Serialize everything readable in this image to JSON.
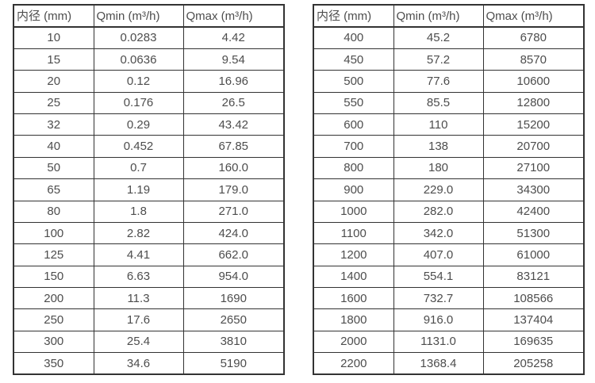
{
  "page": {
    "background_color": "#ffffff",
    "border_color": "#333333",
    "text_color": "#4d4d4d"
  },
  "tables": [
    {
      "name": "small-diameter-table",
      "headers": [
        "内径 (mm)",
        "Qmin (m³/h)",
        "Qmax (m³/h)"
      ],
      "rows": [
        [
          "10",
          "0.0283",
          "4.42"
        ],
        [
          "15",
          "0.0636",
          "9.54"
        ],
        [
          "20",
          "0.12",
          "16.96"
        ],
        [
          "25",
          "0.176",
          "26.5"
        ],
        [
          "32",
          "0.29",
          "43.42"
        ],
        [
          "40",
          "0.452",
          "67.85"
        ],
        [
          "50",
          "0.7",
          "160.0"
        ],
        [
          "65",
          "1.19",
          "179.0"
        ],
        [
          "80",
          "1.8",
          "271.0"
        ],
        [
          "100",
          "2.82",
          "424.0"
        ],
        [
          "125",
          "4.41",
          "662.0"
        ],
        [
          "150",
          "6.63",
          "954.0"
        ],
        [
          "200",
          "11.3",
          "1690"
        ],
        [
          "250",
          "17.6",
          "2650"
        ],
        [
          "300",
          "25.4",
          "3810"
        ],
        [
          "350",
          "34.6",
          "5190"
        ]
      ]
    },
    {
      "name": "large-diameter-table",
      "headers": [
        "内径 (mm)",
        "Qmin (m³/h)",
        "Qmax (m³/h)"
      ],
      "rows": [
        [
          "400",
          "45.2",
          "6780"
        ],
        [
          "450",
          "57.2",
          "8570"
        ],
        [
          "500",
          "77.6",
          "10600"
        ],
        [
          "550",
          "85.5",
          "12800"
        ],
        [
          "600",
          "110",
          "15200"
        ],
        [
          "700",
          "138",
          "20700"
        ],
        [
          "800",
          "180",
          "27100"
        ],
        [
          "900",
          "229.0",
          "34300"
        ],
        [
          "1000",
          "282.0",
          "42400"
        ],
        [
          "1100",
          "342.0",
          "51300"
        ],
        [
          "1200",
          "407.0",
          "61000"
        ],
        [
          "1400",
          "554.1",
          "83121"
        ],
        [
          "1600",
          "732.7",
          "108566"
        ],
        [
          "1800",
          "916.0",
          "137404"
        ],
        [
          "2000",
          "1131.0",
          "169635"
        ],
        [
          "2200",
          "1368.4",
          "205258"
        ]
      ]
    }
  ]
}
